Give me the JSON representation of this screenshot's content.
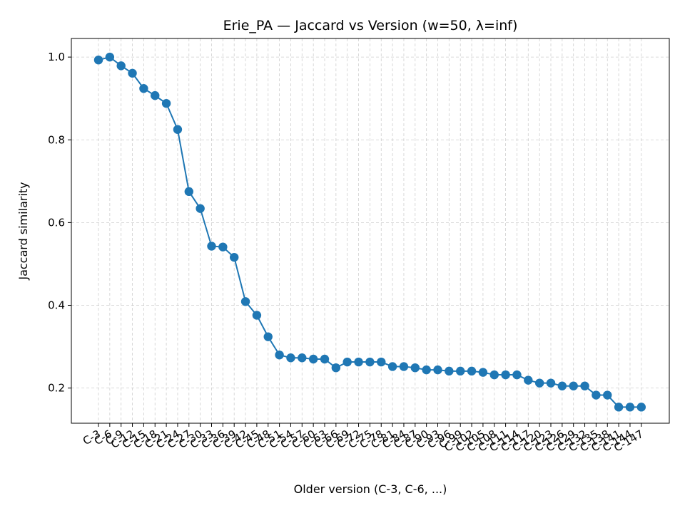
{
  "chart_data": {
    "type": "line",
    "title": "Erie_PA — Jaccard vs Version (w=50, λ=inf)",
    "xlabel": "Older version (C-3, C-6, ...)",
    "ylabel": "Jaccard similarity",
    "ylim": [
      0.115,
      1.045
    ],
    "yticks": [
      0.2,
      0.4,
      0.6,
      0.8,
      1.0
    ],
    "ytick_labels": [
      "0.2",
      "0.4",
      "0.6",
      "0.8",
      "1.0"
    ],
    "grid": true,
    "categories": [
      "C-3",
      "C-6",
      "C-9",
      "C-12",
      "C-15",
      "C-18",
      "C-21",
      "C-24",
      "C-27",
      "C-30",
      "C-33",
      "C-36",
      "C-39",
      "C-42",
      "C-45",
      "C-48",
      "C-51",
      "C-54",
      "C-57",
      "C-60",
      "C-63",
      "C-66",
      "C-69",
      "C-72",
      "C-75",
      "C-78",
      "C-81",
      "C-84",
      "C-87",
      "C-90",
      "C-93",
      "C-96",
      "C-99",
      "C-102",
      "C-105",
      "C-108",
      "C-111",
      "C-114",
      "C-117",
      "C-120",
      "C-123",
      "C-126",
      "C-129",
      "C-132",
      "C-135",
      "C-138",
      "C-141",
      "C-144",
      "C-147"
    ],
    "series": [
      {
        "color": "#1f77b4",
        "values": [
          0.993,
          1.0,
          0.979,
          0.961,
          0.924,
          0.907,
          0.888,
          0.825,
          0.675,
          0.634,
          0.543,
          0.541,
          0.516,
          0.409,
          0.376,
          0.324,
          0.28,
          0.273,
          0.273,
          0.27,
          0.27,
          0.249,
          0.263,
          0.263,
          0.263,
          0.263,
          0.252,
          0.252,
          0.249,
          0.244,
          0.244,
          0.241,
          0.241,
          0.241,
          0.238,
          0.232,
          0.232,
          0.232,
          0.219,
          0.212,
          0.212,
          0.205,
          0.205,
          0.205,
          0.183,
          0.183,
          0.154,
          0.154,
          0.154
        ]
      }
    ]
  }
}
